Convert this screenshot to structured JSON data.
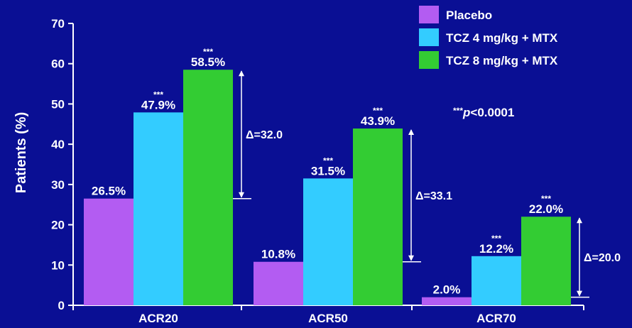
{
  "chart_data": {
    "type": "bar",
    "ylabel": "Patients (%)",
    "ylim": [
      0,
      70
    ],
    "yticks": [
      0,
      10,
      20,
      30,
      40,
      50,
      60,
      70
    ],
    "categories": [
      "ACR20",
      "ACR50",
      "ACR70"
    ],
    "series": [
      {
        "name": "Placebo",
        "color": "#b35cf2",
        "values": [
          26.5,
          10.8,
          2.0
        ],
        "labels": [
          "26.5%",
          "10.8%",
          "2.0%"
        ],
        "stars": [
          "",
          "",
          ""
        ]
      },
      {
        "name": "TCZ 4 mg/kg + MTX",
        "color": "#33ccff",
        "values": [
          47.9,
          31.5,
          12.2
        ],
        "labels": [
          "47.9%",
          "31.5%",
          "12.2%"
        ],
        "stars": [
          "***",
          "***",
          "***"
        ]
      },
      {
        "name": "TCZ 8 mg/kg + MTX",
        "color": "#33cc33",
        "values": [
          58.5,
          43.9,
          22.0
        ],
        "labels": [
          "58.5%",
          "43.9%",
          "22.0%"
        ],
        "stars": [
          "***",
          "***",
          "***"
        ]
      }
    ],
    "deltas": [
      {
        "from": 26.5,
        "to": 58.5,
        "label": "Δ=32.0"
      },
      {
        "from": 10.8,
        "to": 43.9,
        "label": "Δ=33.1"
      },
      {
        "from": 2.0,
        "to": 22.0,
        "label": "Δ=20.0"
      }
    ],
    "annotation": {
      "stars": "***",
      "p": "p",
      "rest": "<0.0001"
    },
    "legend_position": "top-right",
    "grid": false
  }
}
